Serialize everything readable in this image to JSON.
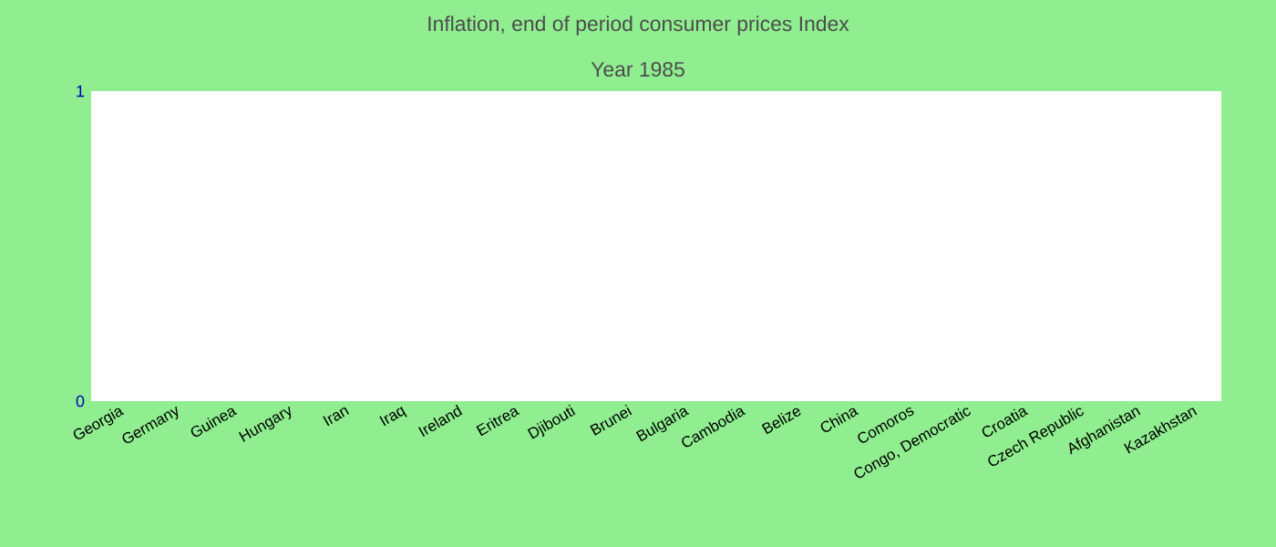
{
  "chart_data": {
    "type": "bar",
    "title": "Inflation, end of period consumer prices  Index",
    "subtitle": "Year 1985",
    "categories": [
      "Georgia",
      "Germany",
      "Guinea",
      "Hungary",
      "Iran",
      "Iraq",
      "Ireland",
      "Eritrea",
      "Djibouti",
      "Brunei",
      "Bulgaria",
      "Cambodia",
      "Belize",
      "China",
      "Comoros",
      "Congo, Democratic",
      "Croatia",
      "Czech Republic",
      "Afghanistan",
      "Kazakhstan"
    ],
    "values": [
      0,
      0,
      0,
      0,
      0,
      0,
      0,
      0,
      0,
      0,
      0,
      0,
      0,
      0,
      0,
      0,
      0,
      0,
      0,
      0
    ],
    "ylim": [
      0,
      1
    ],
    "yticks": [
      0,
      1
    ],
    "grid": false
  }
}
